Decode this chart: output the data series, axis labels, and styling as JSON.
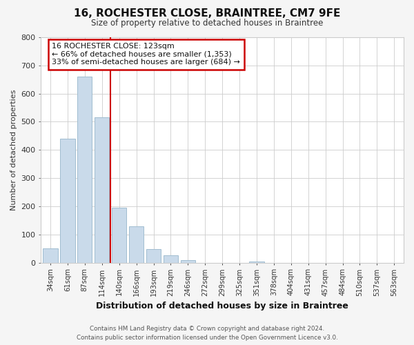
{
  "title": "16, ROCHESTER CLOSE, BRAINTREE, CM7 9FE",
  "subtitle": "Size of property relative to detached houses in Braintree",
  "xlabel": "Distribution of detached houses by size in Braintree",
  "ylabel": "Number of detached properties",
  "bar_labels": [
    "34sqm",
    "61sqm",
    "87sqm",
    "114sqm",
    "140sqm",
    "166sqm",
    "193sqm",
    "219sqm",
    "246sqm",
    "272sqm",
    "299sqm",
    "325sqm",
    "351sqm",
    "378sqm",
    "404sqm",
    "431sqm",
    "457sqm",
    "484sqm",
    "510sqm",
    "537sqm",
    "563sqm"
  ],
  "bar_values": [
    50,
    440,
    660,
    515,
    195,
    128,
    48,
    25,
    8,
    0,
    0,
    0,
    3,
    0,
    0,
    0,
    0,
    0,
    0,
    0,
    0
  ],
  "bar_color": "#c9daea",
  "bar_edge_color": "#a0bdd0",
  "annotation_title": "16 ROCHESTER CLOSE: 123sqm",
  "annotation_line1": "← 66% of detached houses are smaller (1,353)",
  "annotation_line2": "33% of semi-detached houses are larger (684) →",
  "annotation_box_color": "#ffffff",
  "annotation_box_edge_color": "#cc0000",
  "vline_color": "#cc0000",
  "vline_x": 3.5,
  "ylim": [
    0,
    800
  ],
  "yticks": [
    0,
    100,
    200,
    300,
    400,
    500,
    600,
    700,
    800
  ],
  "footer_line1": "Contains HM Land Registry data © Crown copyright and database right 2024.",
  "footer_line2": "Contains public sector information licensed under the Open Government Licence v3.0.",
  "bg_color": "#f5f5f5",
  "plot_bg_color": "#ffffff",
  "grid_color": "#cccccc"
}
